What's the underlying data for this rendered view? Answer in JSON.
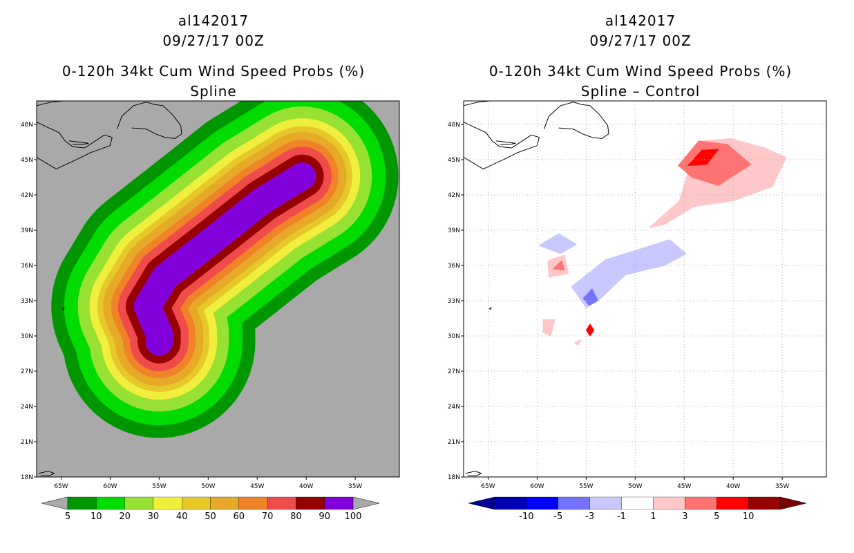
{
  "colors": {
    "ocean_left": "#a9a9a9",
    "ocean_right": "#ffffff",
    "prob": [
      "#009600",
      "#00dc00",
      "#96e132",
      "#f0f03c",
      "#e6c828",
      "#e6aa28",
      "#f08228",
      "#f04b4b",
      "#960000",
      "#8200dc"
    ],
    "prob_under": "#a9a9a9",
    "prob_over": "#a9a9a9",
    "diff": [
      "#0000b4",
      "#0000ff",
      "#7373ff",
      "#c8c8ff",
      "#ffffff",
      "#ffc8c8",
      "#ff7373",
      "#ff0000",
      "#960000"
    ],
    "diff_under": "#000096",
    "diff_over": "#780000"
  },
  "left": {
    "title1": "al142017",
    "title2": "09/27/17 00Z",
    "title3": "0-120h 34kt Cum Wind Speed Probs (%)",
    "title4": "Spline"
  },
  "right": {
    "title1": "al142017",
    "title2": "09/27/17 00Z",
    "title3": "0-120h 34kt Cum Wind Speed Probs (%)",
    "title4": "Spline – Control"
  },
  "chart_data": [
    {
      "type": "heatmap",
      "title": "0-120h 34kt Cum Wind Speed Probs (%)",
      "subtitle": "Spline",
      "xlabel": "",
      "ylabel": "",
      "xlim": [
        -67.5,
        -30.5
      ],
      "ylim": [
        18,
        50
      ],
      "x_ticks": [
        "65W",
        "60W",
        "55W",
        "50W",
        "45W",
        "40W",
        "35W"
      ],
      "x_tick_values": [
        -65,
        -60,
        -55,
        -50,
        -45,
        -40,
        -35
      ],
      "y_ticks": [
        "18N",
        "21N",
        "24N",
        "27N",
        "30N",
        "33N",
        "36N",
        "39N",
        "42N",
        "45N",
        "48N"
      ],
      "y_tick_values": [
        18,
        21,
        24,
        27,
        30,
        33,
        36,
        39,
        42,
        45,
        48
      ],
      "colorbar_levels": [
        "5",
        "10",
        "20",
        "30",
        "40",
        "50",
        "60",
        "70",
        "80",
        "90",
        "100"
      ],
      "contour_levels": [
        5,
        10,
        20,
        30,
        40,
        50,
        60,
        70,
        80,
        90
      ],
      "track": [
        [
          -55.0,
          29.5
        ],
        [
          -55.0,
          30.2
        ],
        [
          -56.2,
          32.5
        ],
        [
          -54.4,
          35.0
        ],
        [
          -49.8,
          38.0
        ],
        [
          -44.5,
          41.5
        ],
        [
          -40.4,
          43.6
        ]
      ],
      "radii": [
        9.8,
        8.5,
        7.1,
        5.9,
        5.1,
        4.5,
        3.7,
        3.0,
        2.2,
        1.4
      ]
    },
    {
      "type": "heatmap",
      "title": "0-120h 34kt Cum Wind Speed Probs (%)",
      "subtitle": "Spline – Control",
      "xlabel": "",
      "ylabel": "",
      "xlim": [
        -67.5,
        -30.5
      ],
      "ylim": [
        18,
        50
      ],
      "x_ticks": [
        "65W",
        "60W",
        "55W",
        "50W",
        "45W",
        "40W",
        "35W"
      ],
      "x_tick_values": [
        -65,
        -60,
        -55,
        -50,
        -45,
        -40,
        -35
      ],
      "y_ticks": [
        "18N",
        "21N",
        "24N",
        "27N",
        "30N",
        "33N",
        "36N",
        "39N",
        "42N",
        "45N",
        "48N"
      ],
      "y_tick_values": [
        18,
        21,
        24,
        27,
        30,
        33,
        36,
        39,
        42,
        45,
        48
      ],
      "grid": true,
      "colorbar_levels": [
        "-10",
        "-5",
        "-3",
        "-1",
        "1",
        "3",
        "5",
        "10"
      ],
      "diff_regions": [
        {
          "level": 1,
          "pts": [
            [
              -48.6,
              39.2
            ],
            [
              -45.5,
              41.5
            ],
            [
              -44.4,
              44.5
            ],
            [
              -43.0,
              46.6
            ],
            [
              -40.2,
              46.8
            ],
            [
              -36.8,
              46.0
            ],
            [
              -34.6,
              45.2
            ],
            [
              -36.0,
              42.7
            ],
            [
              -40.0,
              41.5
            ],
            [
              -44.0,
              41.0
            ],
            [
              -47.0,
              39.5
            ]
          ]
        },
        {
          "level": 3,
          "pts": [
            [
              -45.6,
              44.5
            ],
            [
              -43.5,
              46.6
            ],
            [
              -40.6,
              46.3
            ],
            [
              -38.2,
              44.6
            ],
            [
              -41.5,
              42.8
            ],
            [
              -44.2,
              43.5
            ]
          ]
        },
        {
          "level": 5,
          "pts": [
            [
              -44.6,
              44.5
            ],
            [
              -43.2,
              45.8
            ],
            [
              -41.5,
              45.9
            ],
            [
              -42.7,
              44.6
            ]
          ]
        },
        {
          "level": -1,
          "pts": [
            [
              -56.5,
              34.2
            ],
            [
              -53.0,
              36.5
            ],
            [
              -49.5,
              37.4
            ],
            [
              -46.5,
              38.2
            ],
            [
              -44.8,
              37.0
            ],
            [
              -47.0,
              36.0
            ],
            [
              -51.0,
              35.2
            ],
            [
              -53.5,
              33.2
            ],
            [
              -55.0,
              32.4
            ]
          ]
        },
        {
          "level": -1,
          "pts": [
            [
              -59.8,
              37.7
            ],
            [
              -57.8,
              38.7
            ],
            [
              -56.0,
              37.8
            ],
            [
              -57.6,
              37.0
            ]
          ]
        },
        {
          "level": -3,
          "pts": [
            [
              -55.3,
              33.2
            ],
            [
              -54.4,
              34.0
            ],
            [
              -53.8,
              33.0
            ],
            [
              -54.7,
              32.6
            ]
          ]
        },
        {
          "level": 1,
          "pts": [
            [
              -58.8,
              35.0
            ],
            [
              -58.9,
              36.4
            ],
            [
              -57.2,
              36.9
            ],
            [
              -56.8,
              35.3
            ]
          ]
        },
        {
          "level": 3,
          "pts": [
            [
              -58.4,
              35.7
            ],
            [
              -57.5,
              36.4
            ],
            [
              -57.2,
              35.6
            ]
          ]
        },
        {
          "level": 1,
          "pts": [
            [
              -59.4,
              30.3
            ],
            [
              -59.4,
              31.4
            ],
            [
              -58.2,
              31.4
            ],
            [
              -58.6,
              30.0
            ]
          ]
        },
        {
          "level": 1,
          "pts": [
            [
              -56.2,
              29.4
            ],
            [
              -55.5,
              29.7
            ],
            [
              -55.8,
              29.2
            ]
          ]
        },
        {
          "level": 5,
          "pts": [
            [
              -54.6,
              31.0
            ],
            [
              -54.2,
              30.5
            ],
            [
              -54.6,
              30.0
            ],
            [
              -55.0,
              30.5
            ]
          ]
        }
      ]
    }
  ]
}
